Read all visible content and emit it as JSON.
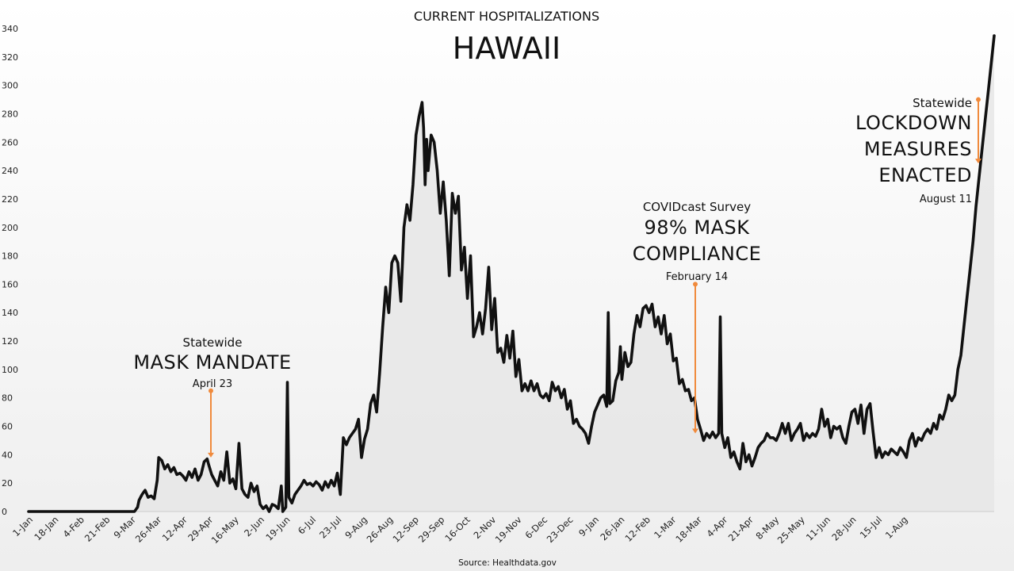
{
  "chart_data": {
    "type": "line",
    "title": "CURRENT HOSPITALIZATIONS",
    "subtitle": "HAWAII",
    "source": "Source: Healthdata.gov",
    "xlabel": "",
    "ylabel": "",
    "ylim": [
      0,
      340
    ],
    "yticks": [
      0,
      20,
      40,
      60,
      80,
      100,
      120,
      140,
      160,
      180,
      200,
      220,
      240,
      260,
      280,
      300,
      320,
      340
    ],
    "xlim_days": [
      0,
      592
    ],
    "x_tick_labels": [
      "1-Jan",
      "18-Jan",
      "4-Feb",
      "21-Feb",
      "9-Mar",
      "26-Mar",
      "12-Apr",
      "29-Apr",
      "16-May",
      "2-Jun",
      "19-Jun",
      "6-Jul",
      "23-Jul",
      "9-Aug",
      "26-Aug",
      "12-Sep",
      "29-Sep",
      "16-Oct",
      "2-Nov",
      "19-Nov",
      "6-Dec",
      "23-Dec",
      "9-Jan",
      "26-Jan",
      "12-Feb",
      "1-Mar",
      "18-Mar",
      "4-Apr",
      "21-Apr",
      "8-May",
      "25-May",
      "11-Jun",
      "28-Jun",
      "15-Jul",
      "1-Aug"
    ],
    "grid": false,
    "series": [
      {
        "name": "",
        "points": [
          [
            0,
            0
          ],
          [
            70,
            0
          ],
          [
            72,
            3
          ],
          [
            73,
            8
          ],
          [
            75,
            12
          ],
          [
            77,
            15
          ],
          [
            79,
            10
          ],
          [
            81,
            11
          ],
          [
            83,
            9
          ],
          [
            85,
            22
          ],
          [
            86,
            38
          ],
          [
            88,
            36
          ],
          [
            90,
            30
          ],
          [
            92,
            33
          ],
          [
            94,
            28
          ],
          [
            96,
            31
          ],
          [
            98,
            26
          ],
          [
            100,
            27
          ],
          [
            102,
            25
          ],
          [
            104,
            22
          ],
          [
            106,
            28
          ],
          [
            108,
            24
          ],
          [
            110,
            30
          ],
          [
            112,
            22
          ],
          [
            114,
            26
          ],
          [
            116,
            35
          ],
          [
            118,
            37
          ],
          [
            119,
            33
          ],
          [
            121,
            26
          ],
          [
            123,
            22
          ],
          [
            125,
            18
          ],
          [
            127,
            28
          ],
          [
            129,
            22
          ],
          [
            131,
            42
          ],
          [
            133,
            20
          ],
          [
            135,
            23
          ],
          [
            137,
            16
          ],
          [
            139,
            48
          ],
          [
            141,
            16
          ],
          [
            143,
            12
          ],
          [
            145,
            10
          ],
          [
            147,
            20
          ],
          [
            149,
            14
          ],
          [
            151,
            18
          ],
          [
            153,
            5
          ],
          [
            155,
            2
          ],
          [
            157,
            4
          ],
          [
            159,
            0
          ],
          [
            161,
            5
          ],
          [
            163,
            4
          ],
          [
            165,
            2
          ],
          [
            167,
            18
          ],
          [
            168,
            0
          ],
          [
            170,
            3
          ],
          [
            171,
            91
          ],
          [
            172,
            10
          ],
          [
            174,
            6
          ],
          [
            176,
            12
          ],
          [
            178,
            15
          ],
          [
            180,
            18
          ],
          [
            182,
            22
          ],
          [
            184,
            19
          ],
          [
            186,
            20
          ],
          [
            188,
            18
          ],
          [
            190,
            21
          ],
          [
            192,
            19
          ],
          [
            194,
            15
          ],
          [
            196,
            21
          ],
          [
            198,
            17
          ],
          [
            200,
            22
          ],
          [
            202,
            18
          ],
          [
            204,
            27
          ],
          [
            206,
            12
          ],
          [
            208,
            52
          ],
          [
            210,
            47
          ],
          [
            212,
            52
          ],
          [
            214,
            55
          ],
          [
            216,
            58
          ],
          [
            218,
            65
          ],
          [
            220,
            38
          ],
          [
            222,
            51
          ],
          [
            224,
            58
          ],
          [
            226,
            76
          ],
          [
            228,
            82
          ],
          [
            230,
            70
          ],
          [
            232,
            98
          ],
          [
            234,
            130
          ],
          [
            236,
            158
          ],
          [
            238,
            140
          ],
          [
            240,
            175
          ],
          [
            242,
            180
          ],
          [
            244,
            175
          ],
          [
            246,
            148
          ],
          [
            248,
            200
          ],
          [
            250,
            216
          ],
          [
            252,
            205
          ],
          [
            254,
            230
          ],
          [
            256,
            265
          ],
          [
            258,
            278
          ],
          [
            260,
            288
          ],
          [
            261,
            270
          ],
          [
            262,
            230
          ],
          [
            263,
            262
          ],
          [
            264,
            240
          ],
          [
            266,
            265
          ],
          [
            268,
            260
          ],
          [
            270,
            240
          ],
          [
            272,
            210
          ],
          [
            274,
            232
          ],
          [
            276,
            205
          ],
          [
            278,
            166
          ],
          [
            280,
            224
          ],
          [
            282,
            210
          ],
          [
            284,
            222
          ],
          [
            286,
            170
          ],
          [
            288,
            186
          ],
          [
            290,
            150
          ],
          [
            292,
            180
          ],
          [
            294,
            123
          ],
          [
            296,
            130
          ],
          [
            298,
            140
          ],
          [
            300,
            125
          ],
          [
            302,
            143
          ],
          [
            304,
            172
          ],
          [
            306,
            128
          ],
          [
            308,
            150
          ],
          [
            310,
            112
          ],
          [
            312,
            115
          ],
          [
            314,
            105
          ],
          [
            316,
            124
          ],
          [
            318,
            108
          ],
          [
            320,
            127
          ],
          [
            322,
            95
          ],
          [
            324,
            107
          ],
          [
            326,
            85
          ],
          [
            328,
            90
          ],
          [
            330,
            85
          ],
          [
            332,
            92
          ],
          [
            334,
            85
          ],
          [
            336,
            90
          ],
          [
            338,
            82
          ],
          [
            340,
            80
          ],
          [
            342,
            83
          ],
          [
            344,
            78
          ],
          [
            346,
            91
          ],
          [
            348,
            85
          ],
          [
            350,
            88
          ],
          [
            352,
            80
          ],
          [
            354,
            86
          ],
          [
            356,
            72
          ],
          [
            358,
            78
          ],
          [
            360,
            62
          ],
          [
            362,
            65
          ],
          [
            364,
            60
          ],
          [
            366,
            58
          ],
          [
            368,
            55
          ],
          [
            370,
            48
          ],
          [
            372,
            60
          ],
          [
            374,
            70
          ],
          [
            376,
            75
          ],
          [
            378,
            80
          ],
          [
            380,
            82
          ],
          [
            382,
            74
          ],
          [
            383,
            140
          ],
          [
            384,
            76
          ],
          [
            386,
            78
          ],
          [
            388,
            92
          ],
          [
            390,
            98
          ],
          [
            391,
            116
          ],
          [
            392,
            93
          ],
          [
            394,
            112
          ],
          [
            396,
            102
          ],
          [
            398,
            105
          ],
          [
            400,
            125
          ],
          [
            402,
            138
          ],
          [
            404,
            130
          ],
          [
            406,
            143
          ],
          [
            408,
            145
          ],
          [
            410,
            140
          ],
          [
            412,
            146
          ],
          [
            414,
            130
          ],
          [
            416,
            137
          ],
          [
            418,
            125
          ],
          [
            420,
            138
          ],
          [
            422,
            118
          ],
          [
            424,
            125
          ],
          [
            426,
            106
          ],
          [
            428,
            108
          ],
          [
            430,
            90
          ],
          [
            432,
            93
          ],
          [
            434,
            85
          ],
          [
            436,
            86
          ],
          [
            438,
            78
          ],
          [
            440,
            80
          ],
          [
            442,
            65
          ],
          [
            444,
            58
          ],
          [
            446,
            50
          ],
          [
            448,
            55
          ],
          [
            450,
            52
          ],
          [
            452,
            56
          ],
          [
            454,
            52
          ],
          [
            456,
            55
          ],
          [
            457,
            137
          ],
          [
            458,
            55
          ],
          [
            460,
            45
          ],
          [
            462,
            52
          ],
          [
            464,
            38
          ],
          [
            466,
            42
          ],
          [
            468,
            35
          ],
          [
            470,
            30
          ],
          [
            472,
            48
          ],
          [
            474,
            35
          ],
          [
            476,
            40
          ],
          [
            478,
            32
          ],
          [
            480,
            38
          ],
          [
            482,
            45
          ],
          [
            484,
            48
          ],
          [
            486,
            50
          ],
          [
            488,
            55
          ],
          [
            490,
            52
          ],
          [
            492,
            52
          ],
          [
            494,
            50
          ],
          [
            496,
            55
          ],
          [
            498,
            62
          ],
          [
            500,
            55
          ],
          [
            502,
            62
          ],
          [
            504,
            50
          ],
          [
            506,
            55
          ],
          [
            508,
            58
          ],
          [
            510,
            62
          ],
          [
            512,
            50
          ],
          [
            514,
            55
          ],
          [
            516,
            52
          ],
          [
            518,
            55
          ],
          [
            520,
            53
          ],
          [
            522,
            58
          ],
          [
            524,
            72
          ],
          [
            526,
            60
          ],
          [
            528,
            65
          ],
          [
            530,
            52
          ],
          [
            532,
            60
          ],
          [
            534,
            58
          ],
          [
            536,
            60
          ],
          [
            538,
            52
          ],
          [
            540,
            48
          ],
          [
            542,
            60
          ],
          [
            544,
            70
          ],
          [
            546,
            72
          ],
          [
            548,
            62
          ],
          [
            550,
            75
          ],
          [
            552,
            55
          ],
          [
            554,
            72
          ],
          [
            556,
            76
          ],
          [
            558,
            56
          ],
          [
            560,
            38
          ],
          [
            562,
            45
          ],
          [
            564,
            38
          ],
          [
            566,
            42
          ],
          [
            568,
            40
          ],
          [
            570,
            44
          ],
          [
            572,
            42
          ],
          [
            574,
            40
          ],
          [
            576,
            45
          ],
          [
            578,
            42
          ],
          [
            580,
            38
          ],
          [
            582,
            50
          ],
          [
            584,
            55
          ],
          [
            586,
            46
          ],
          [
            588,
            52
          ],
          [
            590,
            50
          ],
          [
            592,
            55
          ],
          [
            594,
            58
          ],
          [
            596,
            55
          ],
          [
            598,
            62
          ],
          [
            600,
            58
          ],
          [
            602,
            68
          ],
          [
            604,
            65
          ],
          [
            606,
            72
          ],
          [
            608,
            82
          ],
          [
            610,
            78
          ],
          [
            612,
            82
          ],
          [
            614,
            100
          ],
          [
            616,
            110
          ],
          [
            618,
            130
          ],
          [
            620,
            150
          ],
          [
            622,
            170
          ],
          [
            624,
            190
          ],
          [
            626,
            215
          ],
          [
            628,
            235
          ],
          [
            630,
            255
          ],
          [
            632,
            275
          ],
          [
            634,
            295
          ],
          [
            636,
            315
          ],
          [
            637,
            325
          ],
          [
            638,
            335
          ]
        ]
      }
    ],
    "annotations": [
      {
        "top": "Statewide",
        "main": [
          "MASK MANDATE"
        ],
        "date": "April 23",
        "x": 113,
        "y_from": 85,
        "y_to": 38
      },
      {
        "top": "COVIDcast Survey",
        "main": [
          "98% MASK",
          "COMPLIANCE"
        ],
        "date": "February 14",
        "x": 440,
        "y_from": 160,
        "y_to": 55
      },
      {
        "top": "Statewide",
        "main": [
          "LOCKDOWN",
          "MEASURES",
          "ENACTED"
        ],
        "date": "August 11",
        "x": 627,
        "y_from": 290,
        "y_to": 245
      }
    ],
    "colors": {
      "line": "#111111",
      "fill": "#e6e6e6",
      "annotation": "#f08a3c"
    }
  }
}
